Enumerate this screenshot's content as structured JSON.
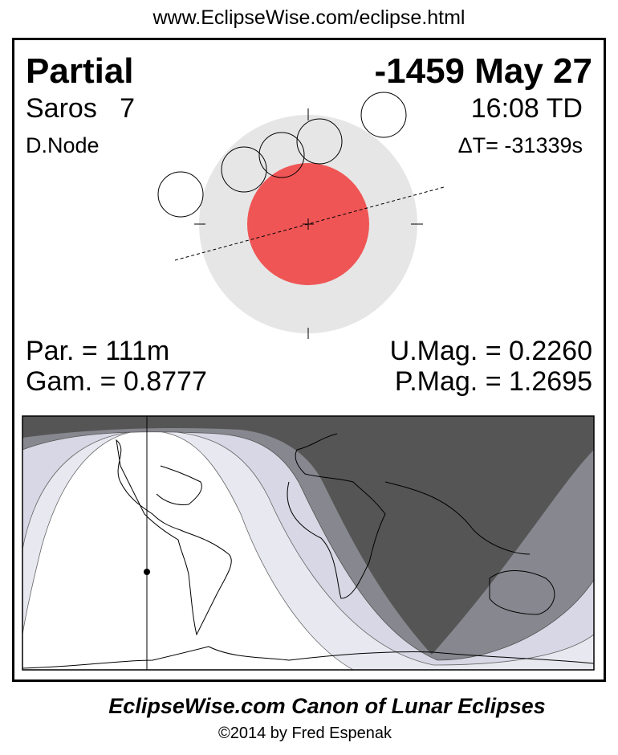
{
  "header": {
    "url": "www.EclipseWise.com/eclipse.html"
  },
  "eclipse": {
    "type": "Partial",
    "date": "-1459 May 27",
    "saros": "Saros   7",
    "time": "16:08 TD",
    "node": "D.Node",
    "delta_t": "ΔT= -31339s",
    "duration": "Par. = 111m",
    "gamma": "Gam. = 0.8777",
    "umbral_mag": "U.Mag. = 0.2260",
    "penumbral_mag": "P.Mag. = 1.2695"
  },
  "colors": {
    "umbra": "#ef5555",
    "penumbra": "#e6e6e6",
    "map_total_dark": "#555555",
    "map_umbral": "#87878f",
    "map_penumbral": "#d7d7e5",
    "map_penumbral_light": "#e8e8f1"
  },
  "footer": {
    "title": "EclipseWise.com Canon of Lunar Eclipses",
    "copyright": "©2014 by Fred Espenak"
  }
}
